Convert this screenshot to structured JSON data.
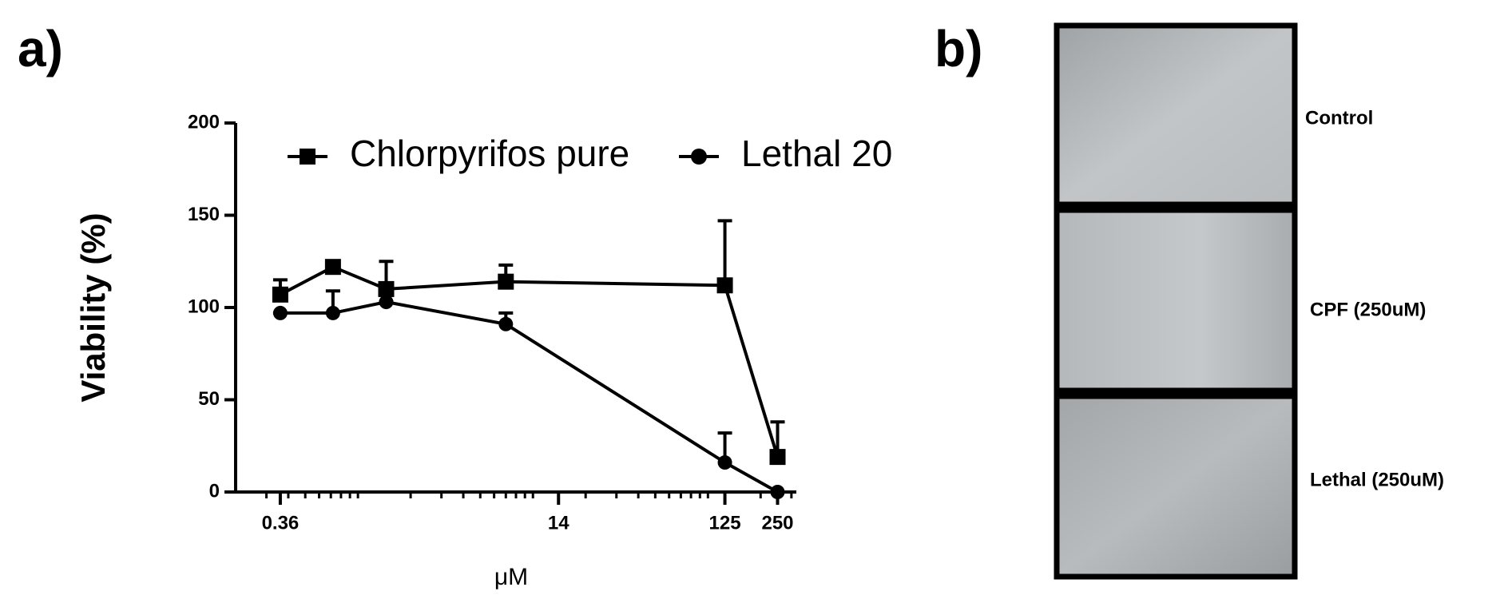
{
  "panel_a_label": "a)",
  "panel_b_label": "b)",
  "chart_data": {
    "type": "line",
    "xlabel": "μM",
    "ylabel": "Viability (%)",
    "x": [
      0.36,
      0.72,
      1.45,
      7,
      125,
      250
    ],
    "xlog": true,
    "xlim": [
      0.2,
      320
    ],
    "xticks": [
      0.36,
      14,
      125,
      250
    ],
    "xminorticks": [
      0.3,
      0.4,
      0.5,
      0.6,
      0.7,
      0.8,
      0.9,
      1,
      2,
      3,
      4,
      5,
      6,
      7,
      8,
      9,
      10,
      20,
      30,
      40,
      50,
      60,
      70,
      80,
      90,
      100,
      200,
      300
    ],
    "ylim": [
      0,
      200
    ],
    "yticks": [
      0,
      50,
      100,
      150,
      200
    ],
    "series": [
      {
        "name": "Chlorpyrifos pure",
        "marker": "square",
        "color": "#000000",
        "values": [
          107,
          122,
          110,
          114,
          112,
          19
        ],
        "errors": [
          8,
          0,
          15,
          9,
          35,
          19
        ]
      },
      {
        "name": "Lethal 20",
        "marker": "circle",
        "color": "#000000",
        "values": [
          97,
          97,
          103,
          91,
          16,
          0
        ],
        "errors": [
          0,
          12,
          0,
          6,
          16,
          0
        ]
      }
    ]
  },
  "images": [
    {
      "label": "Control"
    },
    {
      "label": "CPF (250uM)"
    },
    {
      "label": "Lethal (250uM)"
    }
  ]
}
